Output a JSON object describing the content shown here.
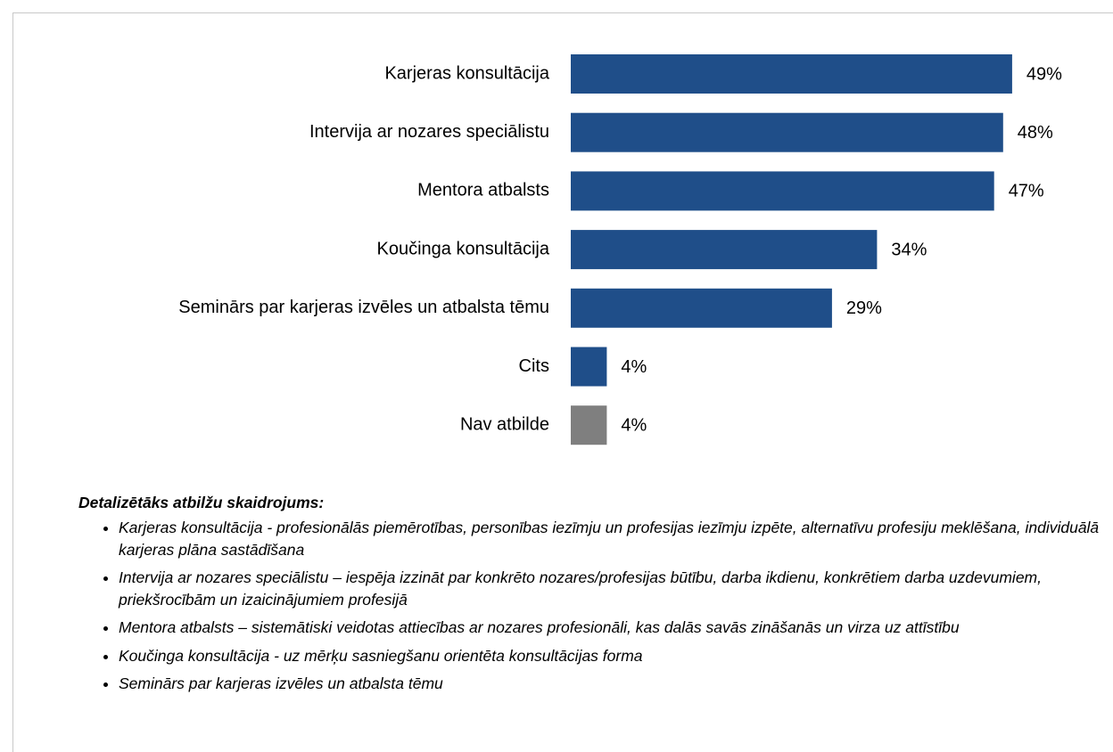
{
  "chart_data": {
    "type": "barh",
    "categories": [
      "Karjeras konsultācija",
      "Intervija ar nozares speciālistu",
      "Mentora atbalsts",
      "Koučinga konsultācija",
      "Seminārs par karjeras izvēles un atbalsta tēmu",
      "Cits",
      "Nav atbilde"
    ],
    "values": [
      49,
      48,
      47,
      34,
      29,
      4,
      4
    ],
    "value_labels": [
      "49%",
      "48%",
      "47%",
      "34%",
      "29%",
      "4%",
      "4%"
    ],
    "colors": [
      "#1f4e89",
      "#1f4e89",
      "#1f4e89",
      "#1f4e89",
      "#1f4e89",
      "#1f4e89",
      "#7f7f7f"
    ]
  },
  "notes": {
    "title": "Detalizētāks atbilžu skaidrojums:",
    "items": [
      "Karjeras konsultācija - profesionālās piemērotības, personības iezīmju un profesijas iezīmju izpēte, alternatīvu profesiju meklēšana, individuālā karjeras plāna sastādīšana",
      "Intervija ar nozares speciālistu – iespēja izzināt par konkrēto nozares/profesijas būtību, darba ikdienu, konkrētiem darba uzdevumiem, priekšrocībām un izaicinājumiem profesijā",
      "Mentora atbalsts – sistemātiski veidotas attiecības ar nozares profesionāli, kas dalās savās zināšanās un virza uz attīstību",
      "Koučinga konsultācija - uz mērķu sasniegšanu orientēta konsultācijas forma",
      "Seminārs par karjeras izvēles un atbalsta tēmu"
    ]
  }
}
